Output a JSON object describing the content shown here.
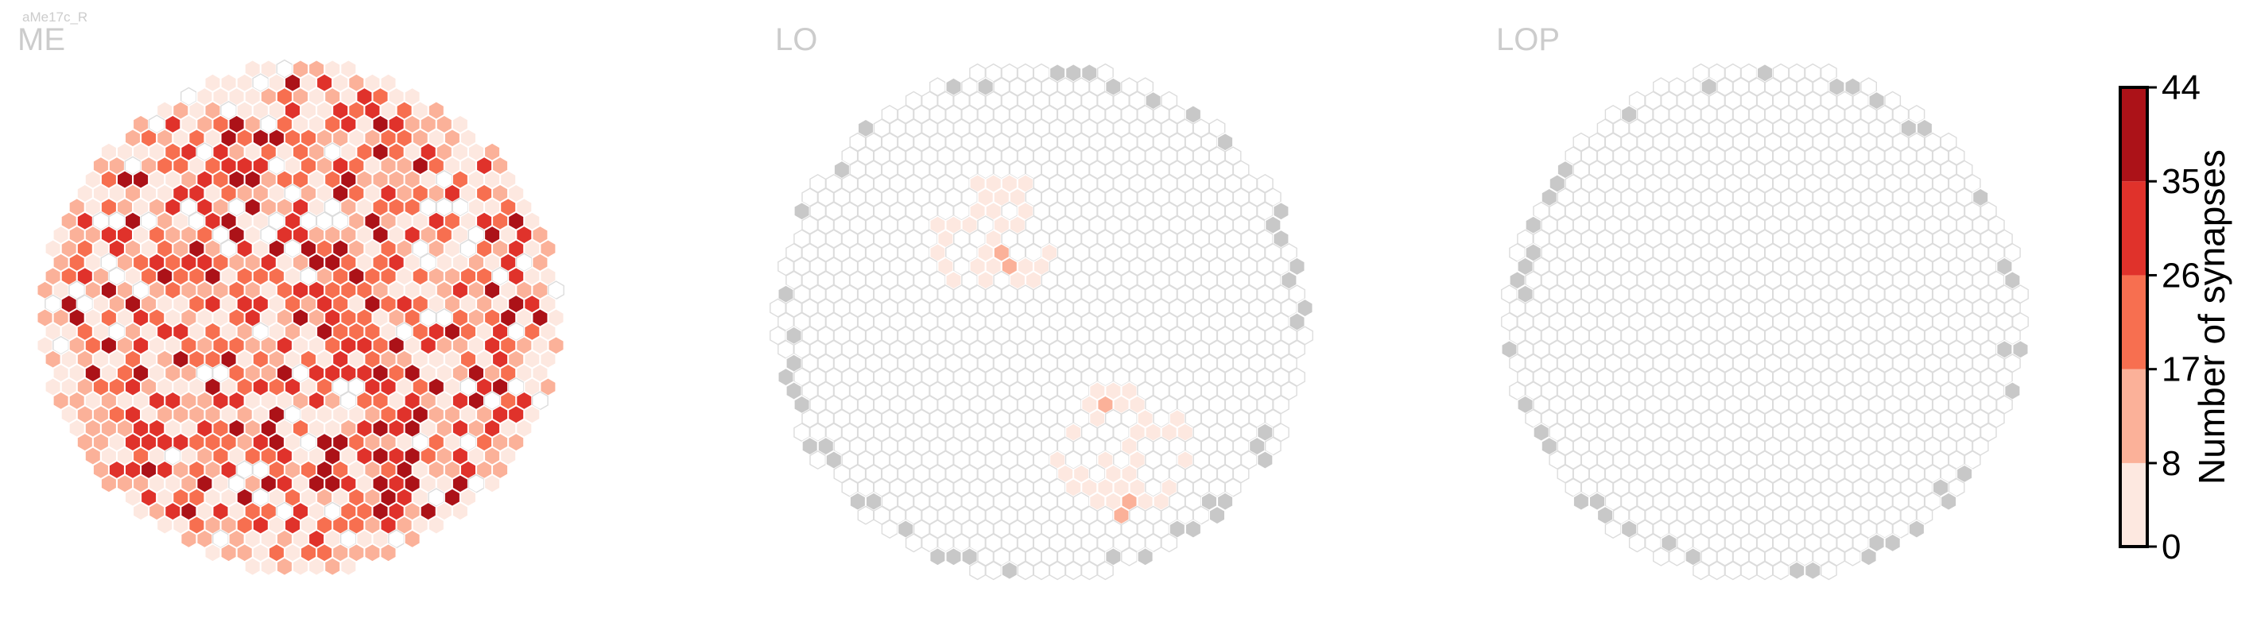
{
  "chart_data": {
    "type": "heatmap",
    "subtitle": "aMe17c_R",
    "panels": [
      {
        "label": "ME",
        "mode": "data"
      },
      {
        "label": "LO",
        "mode": "sparse"
      },
      {
        "label": "LOP",
        "mode": "empty"
      }
    ],
    "colorbar": {
      "title": "Number of synapses",
      "ticks": [
        0,
        8,
        17,
        26,
        35,
        44
      ],
      "colors": [
        "#fde8e0",
        "#fbb199",
        "#f76f50",
        "#e0322b",
        "#ac1218"
      ],
      "range": [
        0,
        44
      ]
    },
    "colors": {
      "empty_fill": "#ffffff",
      "empty_stroke": "#dcdcdc",
      "boundary_fill": "#c8c8c8",
      "cell_stroke": "#ffffff"
    }
  }
}
